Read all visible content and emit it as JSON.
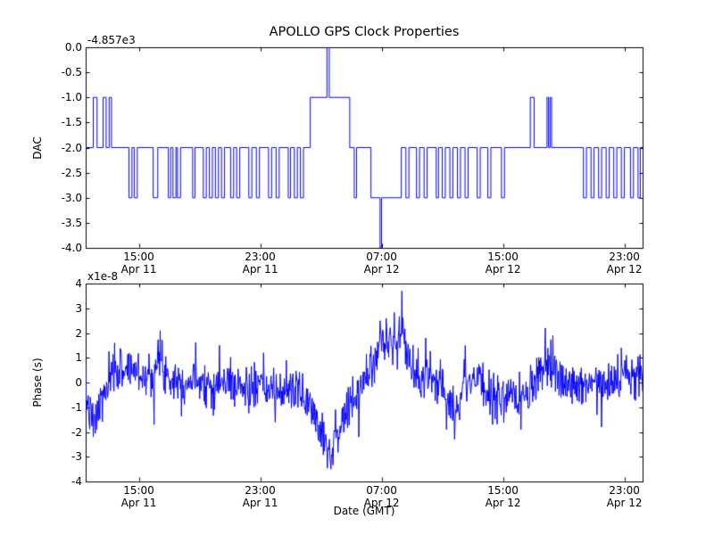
{
  "figure": {
    "background": "#ffffff",
    "frame_color": "#000000"
  },
  "chart_data": [
    {
      "type": "line",
      "title": "APOLLO GPS Clock Properties",
      "ylabel": "DAC",
      "offset_text": "-4.857e3",
      "style": "step-post",
      "color": "#0000ff",
      "xlim": [
        11.5,
        48.2
      ],
      "ylim": [
        -4.0,
        0.0
      ],
      "yticks": [
        {
          "v": 0.0,
          "label": "0.0"
        },
        {
          "v": -0.5,
          "label": "-0.5"
        },
        {
          "v": -1.0,
          "label": "-1.0"
        },
        {
          "v": -1.5,
          "label": "-1.5"
        },
        {
          "v": -2.0,
          "label": "-2.0"
        },
        {
          "v": -2.5,
          "label": "-2.5"
        },
        {
          "v": -3.0,
          "label": "-3.0"
        },
        {
          "v": -3.5,
          "label": "-3.5"
        },
        {
          "v": -4.0,
          "label": "-4.0"
        }
      ],
      "xticks": [
        {
          "t": 15,
          "line1": "15:00",
          "line2": "Apr 11"
        },
        {
          "t": 23,
          "line1": "23:00",
          "line2": "Apr 11"
        },
        {
          "t": 31,
          "line1": "07:00",
          "line2": "Apr 12"
        },
        {
          "t": 39,
          "line1": "15:00",
          "line2": "Apr 12"
        },
        {
          "t": 47,
          "line1": "23:00",
          "line2": "Apr 12"
        }
      ],
      "steps": [
        [
          11.5,
          -2
        ],
        [
          12.0,
          -1
        ],
        [
          12.25,
          -2
        ],
        [
          12.65,
          -1
        ],
        [
          12.85,
          -2
        ],
        [
          13.05,
          -1
        ],
        [
          13.2,
          -2
        ],
        [
          14.35,
          -3
        ],
        [
          14.55,
          -2
        ],
        [
          14.7,
          -3
        ],
        [
          14.9,
          -2
        ],
        [
          15.95,
          -3
        ],
        [
          16.25,
          -2
        ],
        [
          16.95,
          -3
        ],
        [
          17.1,
          -2
        ],
        [
          17.25,
          -3
        ],
        [
          17.45,
          -2
        ],
        [
          17.55,
          -3
        ],
        [
          17.75,
          -2
        ],
        [
          18.55,
          -3
        ],
        [
          18.7,
          -2
        ],
        [
          19.25,
          -3
        ],
        [
          19.45,
          -2
        ],
        [
          19.65,
          -3
        ],
        [
          19.85,
          -2
        ],
        [
          20.05,
          -3
        ],
        [
          20.25,
          -2
        ],
        [
          20.45,
          -3
        ],
        [
          20.65,
          -2
        ],
        [
          21.05,
          -3
        ],
        [
          21.25,
          -2
        ],
        [
          21.45,
          -3
        ],
        [
          21.65,
          -2
        ],
        [
          22.25,
          -3
        ],
        [
          22.45,
          -2
        ],
        [
          22.75,
          -3
        ],
        [
          22.95,
          -2
        ],
        [
          23.55,
          -3
        ],
        [
          23.75,
          -2
        ],
        [
          24.05,
          -3
        ],
        [
          24.25,
          -2
        ],
        [
          24.85,
          -3
        ],
        [
          25.0,
          -2
        ],
        [
          25.25,
          -3
        ],
        [
          25.45,
          -2
        ],
        [
          25.65,
          -3
        ],
        [
          25.85,
          -2
        ],
        [
          26.3,
          -1
        ],
        [
          27.4,
          0
        ],
        [
          27.55,
          -1
        ],
        [
          28.9,
          -2
        ],
        [
          29.2,
          -3
        ],
        [
          29.35,
          -2
        ],
        [
          30.3,
          -3
        ],
        [
          30.9,
          -4
        ],
        [
          31.0,
          -3
        ],
        [
          32.3,
          -2
        ],
        [
          32.6,
          -3
        ],
        [
          32.8,
          -2
        ],
        [
          33.3,
          -3
        ],
        [
          33.5,
          -2
        ],
        [
          33.8,
          -3
        ],
        [
          34.0,
          -2
        ],
        [
          34.6,
          -3
        ],
        [
          34.75,
          -2
        ],
        [
          35.0,
          -3
        ],
        [
          35.2,
          -2
        ],
        [
          35.5,
          -3
        ],
        [
          35.7,
          -2
        ],
        [
          36.0,
          -3
        ],
        [
          36.2,
          -2
        ],
        [
          36.5,
          -3
        ],
        [
          36.7,
          -2
        ],
        [
          37.3,
          -3
        ],
        [
          37.5,
          -2
        ],
        [
          38.0,
          -3
        ],
        [
          38.2,
          -2
        ],
        [
          38.9,
          -3
        ],
        [
          39.1,
          -2
        ],
        [
          40.8,
          -1
        ],
        [
          41.05,
          -2
        ],
        [
          41.9,
          -1
        ],
        [
          42.0,
          -2
        ],
        [
          42.1,
          -1
        ],
        [
          42.2,
          -2
        ],
        [
          44.3,
          -3
        ],
        [
          44.5,
          -2
        ],
        [
          44.8,
          -3
        ],
        [
          45.0,
          -2
        ],
        [
          45.3,
          -3
        ],
        [
          45.5,
          -2
        ],
        [
          45.8,
          -3
        ],
        [
          46.0,
          -2
        ],
        [
          46.3,
          -3
        ],
        [
          46.5,
          -2
        ],
        [
          46.8,
          -3
        ],
        [
          47.0,
          -2
        ],
        [
          47.4,
          -3
        ],
        [
          47.6,
          -2
        ],
        [
          47.9,
          -3
        ],
        [
          48.05,
          -2
        ]
      ]
    },
    {
      "type": "line",
      "ylabel": "Phase (s)",
      "xlabel": "Date (GMT)",
      "offset_text": "x1e-8",
      "style": "noisy-line",
      "color": "#0000ff",
      "xlim": [
        11.5,
        48.2
      ],
      "ylim": [
        -4,
        4
      ],
      "yticks": [
        {
          "v": 4,
          "label": "4"
        },
        {
          "v": 3,
          "label": "3"
        },
        {
          "v": 2,
          "label": "2"
        },
        {
          "v": 1,
          "label": "1"
        },
        {
          "v": 0,
          "label": "0"
        },
        {
          "v": -1,
          "label": "-1"
        },
        {
          "v": -2,
          "label": "-2"
        },
        {
          "v": -3,
          "label": "-3"
        },
        {
          "v": -4,
          "label": "-4"
        }
      ],
      "xticks": [
        {
          "t": 15,
          "line1": "15:00",
          "line2": "Apr 11"
        },
        {
          "t": 23,
          "line1": "23:00",
          "line2": "Apr 11"
        },
        {
          "t": 31,
          "line1": "07:00",
          "line2": "Apr 12"
        },
        {
          "t": 39,
          "line1": "15:00",
          "line2": "Apr 12"
        },
        {
          "t": 47,
          "line1": "23:00",
          "line2": "Apr 12"
        }
      ],
      "signal": {
        "trend": [
          [
            11.5,
            -0.5
          ],
          [
            12.0,
            -1.8
          ],
          [
            12.5,
            -0.8
          ],
          [
            13.5,
            0.5
          ],
          [
            14.5,
            0.6
          ],
          [
            15.5,
            0.2
          ],
          [
            16.3,
            0.8
          ],
          [
            17.0,
            0.3
          ],
          [
            18.0,
            0.0
          ],
          [
            19.0,
            0.2
          ],
          [
            20.0,
            -0.2
          ],
          [
            21.0,
            0.1
          ],
          [
            22.0,
            -0.3
          ],
          [
            23.0,
            -0.2
          ],
          [
            24.0,
            -0.4
          ],
          [
            25.0,
            -0.2
          ],
          [
            26.0,
            -0.6
          ],
          [
            26.8,
            -1.5
          ],
          [
            27.6,
            -2.8
          ],
          [
            28.2,
            -1.8
          ],
          [
            29.0,
            -1.0
          ],
          [
            30.0,
            0.3
          ],
          [
            30.8,
            1.3
          ],
          [
            31.5,
            1.8
          ],
          [
            32.0,
            1.5
          ],
          [
            32.4,
            2.0
          ],
          [
            33.0,
            0.5
          ],
          [
            33.5,
            0.0
          ],
          [
            34.0,
            0.4
          ],
          [
            34.5,
            -0.3
          ],
          [
            35.0,
            0.2
          ],
          [
            35.8,
            -1.2
          ],
          [
            36.5,
            0.0
          ],
          [
            37.0,
            0.3
          ],
          [
            38.0,
            -0.4
          ],
          [
            39.0,
            -0.6
          ],
          [
            40.0,
            -0.8
          ],
          [
            40.8,
            -0.4
          ],
          [
            41.5,
            0.5
          ],
          [
            42.0,
            0.3
          ],
          [
            42.5,
            0.6
          ],
          [
            43.0,
            0.0
          ],
          [
            44.0,
            -0.2
          ],
          [
            45.0,
            0.1
          ],
          [
            46.0,
            0.2
          ],
          [
            47.0,
            0.1
          ],
          [
            48.2,
            0.3
          ]
        ],
        "spikes": [
          [
            12.0,
            -2.2
          ],
          [
            13.4,
            1.6
          ],
          [
            16.0,
            -1.7
          ],
          [
            16.4,
            2.1
          ],
          [
            20.3,
            1.5
          ],
          [
            24.0,
            -1.6
          ],
          [
            27.65,
            -3.5
          ],
          [
            29.5,
            -2.2
          ],
          [
            30.9,
            2.5
          ],
          [
            31.3,
            2.6
          ],
          [
            32.35,
            3.7
          ],
          [
            33.9,
            1.8
          ],
          [
            35.8,
            -2.3
          ],
          [
            36.5,
            1.5
          ],
          [
            38.3,
            -1.7
          ],
          [
            40.2,
            -1.9
          ],
          [
            41.8,
            2.2
          ],
          [
            42.3,
            1.9
          ],
          [
            45.5,
            -1.8
          ],
          [
            46.8,
            1.4
          ]
        ],
        "noise_std": 0.45,
        "seed": 7,
        "samples": 1100
      }
    }
  ]
}
